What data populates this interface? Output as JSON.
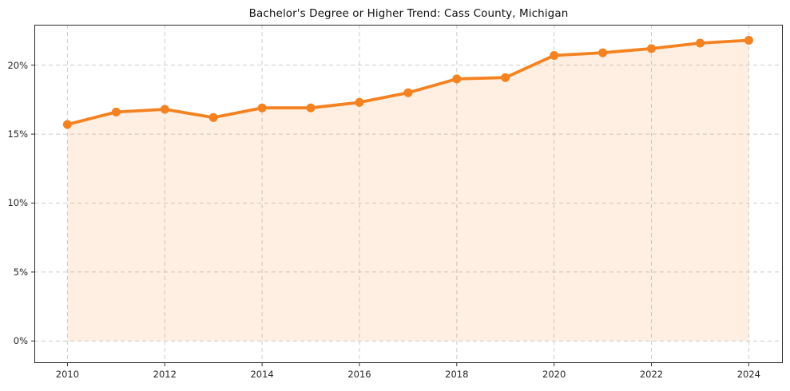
{
  "title": "Bachelor's Degree or Higher Trend: Cass County, Michigan",
  "chart_data": {
    "type": "line",
    "title": "Bachelor's Degree or Higher Trend: Cass County, Michigan",
    "x": [
      2010,
      2011,
      2012,
      2013,
      2014,
      2015,
      2016,
      2017,
      2018,
      2019,
      2020,
      2021,
      2022,
      2023,
      2024
    ],
    "series": [
      {
        "name": "Bachelor's degree or higher (%)",
        "values": [
          15.7,
          16.6,
          16.8,
          16.2,
          16.9,
          16.9,
          17.3,
          18.0,
          19.0,
          19.1,
          20.7,
          20.9,
          21.2,
          21.6,
          21.8
        ]
      }
    ],
    "xlabel": "",
    "ylabel": "",
    "xlim": [
      2009.32,
      2024.7
    ],
    "ylim": [
      -1.6,
      22.93
    ],
    "xticks": {
      "values": [
        2010,
        2012,
        2014,
        2016,
        2018,
        2020,
        2022,
        2024
      ],
      "labels": [
        "2010",
        "2012",
        "2014",
        "2016",
        "2018",
        "2020",
        "2022",
        "2024"
      ]
    },
    "yticks": {
      "values": [
        0,
        5,
        10,
        15,
        20
      ],
      "labels": [
        "0%",
        "5%",
        "10%",
        "15%",
        "20%"
      ]
    },
    "grid": true,
    "legend": false,
    "marker": "circle",
    "area_fill": true
  },
  "colors": {
    "line": "#f58220",
    "fill": "rgba(245,130,32,0.13)",
    "grid": "#cccccc",
    "spine": "#2a2a2a",
    "tick": "#333333",
    "tick_label": "#262626",
    "title": "#111111",
    "background": "#ffffff"
  }
}
